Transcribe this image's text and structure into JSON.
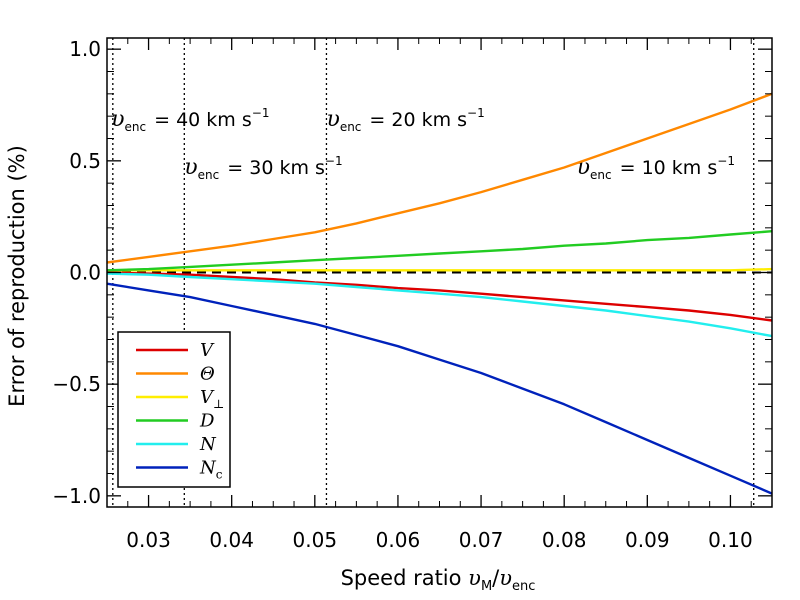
{
  "chart_data": {
    "type": "line",
    "title": "",
    "xlabel": "Speed ratio υ_M/υ_enc",
    "xlabel_main": "Speed ratio ",
    "xlabel_v1": "υ",
    "xlabel_sub1": "M",
    "xlabel_slash": "/",
    "xlabel_v2": "υ",
    "xlabel_sub2": "enc",
    "ylabel": "Error of reproduction (%)",
    "xlim": [
      0.025,
      0.105
    ],
    "ylim": [
      -1.05,
      1.05
    ],
    "x_ticks": [
      0.03,
      0.04,
      0.05,
      0.06,
      0.07,
      0.08,
      0.09,
      0.1
    ],
    "x_tick_labels": [
      "0.03",
      "0.04",
      "0.05",
      "0.06",
      "0.07",
      "0.08",
      "0.09",
      "0.10"
    ],
    "y_ticks": [
      -1.0,
      -0.5,
      0.0,
      0.5,
      1.0
    ],
    "y_tick_labels": [
      "−1.0",
      "−0.5",
      "0.0",
      "0.5",
      "1.0"
    ],
    "zero_line": {
      "y": 0.0,
      "style": "dashed",
      "color": "#000000"
    },
    "vlines": [
      {
        "x": 0.0257,
        "label_prefix": "υ",
        "label_sub": "enc",
        "label_value": "= 40 km s",
        "label_sup": "−1",
        "label_x": 0.0255,
        "label_y": 0.655
      },
      {
        "x": 0.0343,
        "label_prefix": "υ",
        "label_sub": "enc",
        "label_value": "= 30 km s",
        "label_sup": "−1",
        "label_x": 0.0343,
        "label_y": 0.44
      },
      {
        "x": 0.0514,
        "label_prefix": "υ",
        "label_sub": "enc",
        "label_value": "= 20 km s",
        "label_sup": "−1",
        "label_x": 0.0514,
        "label_y": 0.655
      },
      {
        "x": 0.1028,
        "label_prefix": "υ",
        "label_sub": "enc",
        "label_value": "= 10 km s",
        "label_sup": "−1",
        "label_x": 0.0815,
        "label_y": 0.44
      }
    ],
    "x": [
      0.025,
      0.03,
      0.035,
      0.04,
      0.045,
      0.05,
      0.055,
      0.06,
      0.065,
      0.07,
      0.075,
      0.08,
      0.085,
      0.09,
      0.095,
      0.1,
      0.105
    ],
    "series": [
      {
        "name": "V",
        "sub": "",
        "color": "#dd0000",
        "values": [
          0.0,
          -0.005,
          -0.01,
          -0.02,
          -0.03,
          -0.045,
          -0.055,
          -0.07,
          -0.08,
          -0.095,
          -0.11,
          -0.125,
          -0.14,
          -0.155,
          -0.17,
          -0.19,
          -0.215
        ]
      },
      {
        "name": "Θ",
        "sub": "",
        "color": "#ff8800",
        "values": [
          0.045,
          0.07,
          0.095,
          0.12,
          0.15,
          0.18,
          0.22,
          0.265,
          0.31,
          0.36,
          0.415,
          0.47,
          0.535,
          0.6,
          0.665,
          0.73,
          0.8
        ]
      },
      {
        "name": "V",
        "sub": "⊥",
        "color": "#ffee00",
        "values": [
          0.01,
          0.01,
          0.01,
          0.01,
          0.01,
          0.01,
          0.01,
          0.01,
          0.01,
          0.01,
          0.01,
          0.01,
          0.01,
          0.01,
          0.01,
          0.01,
          0.015
        ]
      },
      {
        "name": "D",
        "sub": "",
        "color": "#22cc22",
        "values": [
          0.01,
          0.015,
          0.025,
          0.035,
          0.045,
          0.055,
          0.065,
          0.075,
          0.085,
          0.095,
          0.105,
          0.12,
          0.13,
          0.145,
          0.155,
          0.17,
          0.185
        ]
      },
      {
        "name": "N",
        "sub": "",
        "color": "#22eeee",
        "values": [
          -0.005,
          -0.01,
          -0.02,
          -0.03,
          -0.04,
          -0.05,
          -0.065,
          -0.08,
          -0.095,
          -0.11,
          -0.13,
          -0.15,
          -0.17,
          -0.195,
          -0.22,
          -0.25,
          -0.285
        ]
      },
      {
        "name": "N",
        "sub": "c",
        "color": "#0022bb",
        "values": [
          -0.05,
          -0.08,
          -0.11,
          -0.15,
          -0.19,
          -0.23,
          -0.28,
          -0.33,
          -0.39,
          -0.45,
          -0.52,
          -0.59,
          -0.67,
          -0.75,
          -0.83,
          -0.91,
          -0.99
        ]
      }
    ],
    "legend": {
      "location": "bottom-left"
    }
  }
}
